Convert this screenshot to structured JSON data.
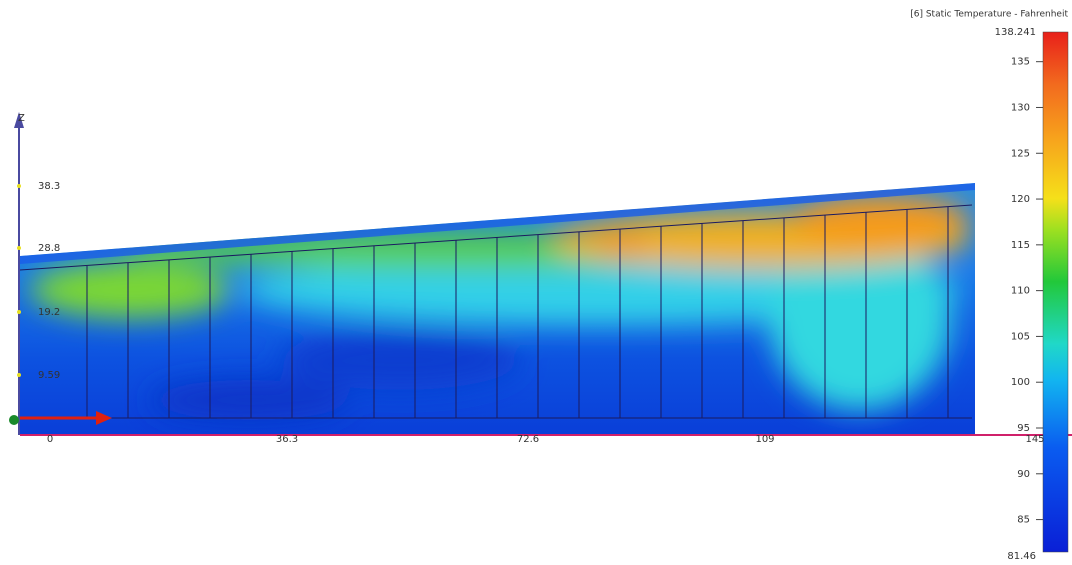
{
  "colorbar": {
    "title": "[6] Static Temperature - Fahrenheit",
    "max_label": "138.241",
    "min_label": "81.46",
    "ticks": [
      "135",
      "130",
      "125",
      "120",
      "115",
      "110",
      "105",
      "100",
      "95",
      "90",
      "85"
    ]
  },
  "axes": {
    "z_name": "Z",
    "z_labels": [
      "38.3",
      "28.8",
      "19.2",
      "9.59"
    ],
    "x_labels": [
      "0",
      "36.3",
      "72.6",
      "109",
      "145"
    ]
  }
}
